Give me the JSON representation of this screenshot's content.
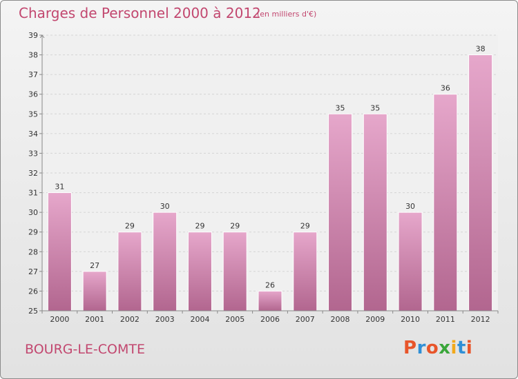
{
  "header": {
    "title": "Charges de Personnel 2000 à 2012",
    "subtitle": "(en milliers d'€)"
  },
  "footer": {
    "commune": "BOURG-LE-COMTE",
    "logo_text": "Proxiti"
  },
  "colors": {
    "accent": "#c2476f",
    "bar_top": "#e6a7cb",
    "bar_bottom": "#b2668f",
    "logo_letters": [
      "#e8552a",
      "#2f8fd6",
      "#e8552a",
      "#3aa63a",
      "#f2a91b",
      "#2f8fd6",
      "#e8552a"
    ]
  },
  "chart_data": {
    "type": "bar",
    "categories": [
      "2000",
      "2001",
      "2002",
      "2003",
      "2004",
      "2005",
      "2006",
      "2007",
      "2008",
      "2009",
      "2010",
      "2011",
      "2012"
    ],
    "values": [
      31,
      27,
      29,
      30,
      29,
      29,
      26,
      29,
      35,
      35,
      30,
      36,
      38
    ],
    "title": "Charges de Personnel 2000 à 2012",
    "subtitle": "(en milliers d'€)",
    "ylim": [
      25,
      39
    ],
    "yticks": [
      25,
      26,
      27,
      28,
      29,
      30,
      31,
      32,
      33,
      34,
      35,
      36,
      37,
      38,
      39
    ],
    "grid": true,
    "data_labels": true
  }
}
